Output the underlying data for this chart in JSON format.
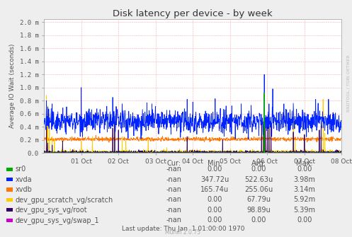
{
  "title": "Disk latency per device - by week",
  "ylabel": "Average IO Wait (seconds)",
  "background_color": "#eeeeee",
  "plot_bg_color": "#ffffff",
  "grid_color": "#ffaaaa",
  "ylim_max": 2.0,
  "ytick_labels": [
    "0.0",
    "0.2 m",
    "0.4 m",
    "0.6 m",
    "0.8 m",
    "1.0 m",
    "1.2 m",
    "1.4 m",
    "1.6 m",
    "1.8 m",
    "2.0 m"
  ],
  "xtick_labels": [
    "01 Oct",
    "02 Oct",
    "03 Oct",
    "04 Oct",
    "05 Oct",
    "06 Oct",
    "07 Oct",
    "08 Oct"
  ],
  "watermark": "RRDTOOL / TOBI OETIKER",
  "munin_version": "Munin 2.0.75",
  "legend_entries": [
    {
      "label": "sr0",
      "color": "#00aa00"
    },
    {
      "label": "xvda",
      "color": "#0022ff"
    },
    {
      "label": "xvdb",
      "color": "#ff7700"
    },
    {
      "label": "dev_gpu_scratch_vg/scratch",
      "color": "#ffcc00"
    },
    {
      "label": "dev_gpu_sys_vg/root",
      "color": "#330066"
    },
    {
      "label": "dev_gpu_sys_vg/swap_1",
      "color": "#cc00cc"
    }
  ],
  "table_headers": [
    "Cur:",
    "Min:",
    "Avg:",
    "Max:"
  ],
  "table_data": [
    [
      "-nan",
      "0.00",
      "0.00",
      "0.00"
    ],
    [
      "-nan",
      "347.72u",
      "522.63u",
      "3.98m"
    ],
    [
      "-nan",
      "165.74u",
      "255.06u",
      "3.14m"
    ],
    [
      "-nan",
      "0.00",
      "67.79u",
      "5.92m"
    ],
    [
      "-nan",
      "0.00",
      "98.89u",
      "5.39m"
    ],
    [
      "-nan",
      "0.00",
      "0.00",
      "0.00"
    ]
  ],
  "last_update": "Last update: Thu Jan  1 01:00:00 1970",
  "xvda_color": "#0022ff",
  "xvdb_color": "#ff7700",
  "scratch_color": "#ffcc00",
  "root_color": "#330066",
  "sr0_color": "#00aa00",
  "swap_color": "#cc00cc",
  "text_color": "#555555"
}
